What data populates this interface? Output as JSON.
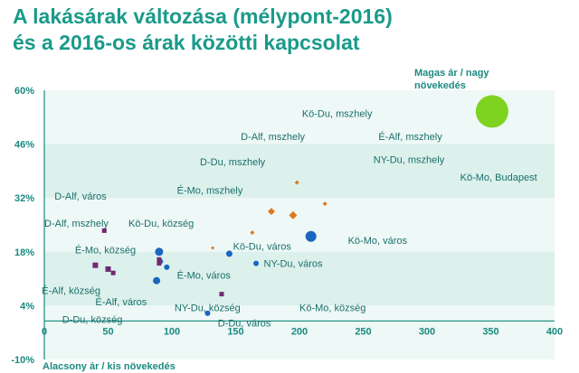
{
  "title_lines": [
    "A lakásárak változása (mélypont-2016)",
    "és a 2016-os árak közötti kapcsolat"
  ],
  "colors": {
    "title": "#1a9a8a",
    "band_light": "#eef8f6",
    "band_dark": "#dcf0ec",
    "axis": "#1a8a80",
    "blue": "#1a66c0",
    "orange": "#e07820",
    "purple": "#702a70",
    "green": "#7ed321"
  },
  "chart_data": {
    "type": "scatter",
    "title": "A lakásárak változása (mélypont-2016) és a 2016-os árak közötti kapcsolat",
    "xlabel": "",
    "ylabel": "",
    "xlim": [
      0,
      400
    ],
    "ylim": [
      -10,
      60
    ],
    "x_ticks": [
      {
        "value": 0,
        "label": "0"
      },
      {
        "value": 50,
        "label": "50"
      },
      {
        "value": 100,
        "label": "100"
      },
      {
        "value": 150,
        "label": "150"
      },
      {
        "value": 200,
        "label": "200"
      },
      {
        "value": 250,
        "label": "250"
      },
      {
        "value": 300,
        "label": "300"
      },
      {
        "value": 350,
        "label": "350"
      },
      {
        "value": 400,
        "label": "400"
      }
    ],
    "y_ticks": [
      {
        "value": 60,
        "label": "60%"
      },
      {
        "value": 46,
        "label": "46%"
      },
      {
        "value": 32,
        "label": "32%"
      },
      {
        "value": 18,
        "label": "18%"
      },
      {
        "value": 4,
        "label": "4%"
      },
      {
        "value": -10,
        "label": "-10%"
      }
    ],
    "corner_labels": {
      "top_right": [
        "Magas ár / nagy",
        "növekedés"
      ],
      "bottom_left": "Alacsony ár / kis növekedés"
    },
    "series": [
      {
        "marker": "circle",
        "color": "#1a66c0",
        "points": [
          {
            "x": 90,
            "y": 18,
            "r": 4.5
          },
          {
            "x": 91,
            "y": 15.5,
            "r": 3
          },
          {
            "x": 96,
            "y": 14,
            "r": 3
          },
          {
            "x": 88,
            "y": 10.5,
            "r": 4
          },
          {
            "x": 128,
            "y": 2,
            "r": 3
          },
          {
            "x": 145,
            "y": 17.5,
            "r": 3.5
          },
          {
            "x": 166,
            "y": 15,
            "r": 3
          },
          {
            "x": 209,
            "y": 22,
            "r": 6
          }
        ]
      },
      {
        "marker": "diamond",
        "color": "#e07820",
        "points": [
          {
            "x": 132,
            "y": 19,
            "r": 2
          },
          {
            "x": 163,
            "y": 23,
            "r": 2.5
          },
          {
            "x": 178,
            "y": 28.5,
            "r": 4
          },
          {
            "x": 195,
            "y": 27.5,
            "r": 4.5
          },
          {
            "x": 198,
            "y": 36,
            "r": 2.5
          },
          {
            "x": 220,
            "y": 30.5,
            "r": 2.5
          }
        ]
      },
      {
        "marker": "square",
        "color": "#702a70",
        "points": [
          {
            "x": 47,
            "y": 23.5,
            "r": 2.5
          },
          {
            "x": 40,
            "y": 14.5,
            "r": 3
          },
          {
            "x": 50,
            "y": 13.5,
            "r": 3
          },
          {
            "x": 54,
            "y": 12.5,
            "r": 2.5
          },
          {
            "x": 90,
            "y": 16,
            "r": 2.5
          },
          {
            "x": 90,
            "y": 15,
            "r": 2.5
          },
          {
            "x": 139,
            "y": 7,
            "r": 2.5
          }
        ]
      },
      {
        "marker": "circle",
        "color": "#7ed321",
        "points": [
          {
            "x": 351,
            "y": 54.5,
            "r": 18
          }
        ]
      }
    ],
    "point_labels": [
      {
        "text": "Kö-Du, mszhely",
        "x": 202,
        "y": 54
      },
      {
        "text": "D-Alf, mszhely",
        "x": 154,
        "y": 48
      },
      {
        "text": "É-Alf, mszhely",
        "x": 262,
        "y": 48
      },
      {
        "text": "D-Du, mszhely",
        "x": 122,
        "y": 41.5
      },
      {
        "text": "NY-Du, mszhely",
        "x": 258,
        "y": 42
      },
      {
        "text": "Kö-Mo, Budapest",
        "x": 326,
        "y": 37.5
      },
      {
        "text": "É-Mo, mszhely",
        "x": 104,
        "y": 34
      },
      {
        "text": "D-Alf, város",
        "x": 8,
        "y": 32.5
      },
      {
        "text": "D-Alf, mszhely",
        "x": 0,
        "y": 25.5
      },
      {
        "text": "Kö-Du, község",
        "x": 66,
        "y": 25.5
      },
      {
        "text": "Kö-Mo, város",
        "x": 238,
        "y": 21
      },
      {
        "text": "Kö-Du, város",
        "x": 148,
        "y": 19.5
      },
      {
        "text": "É-Mo, község",
        "x": 24,
        "y": 18.5
      },
      {
        "text": "NY-Du, város",
        "x": 172,
        "y": 15
      },
      {
        "text": "É-Mo, város",
        "x": 104,
        "y": 12
      },
      {
        "text": "É-Alf, község",
        "x": -2,
        "y": 8
      },
      {
        "text": "É-Alf, város",
        "x": 40,
        "y": 5
      },
      {
        "text": "NY-Du, község",
        "x": 102,
        "y": 3.5
      },
      {
        "text": "Kö-Mo, község",
        "x": 200,
        "y": 3.5
      },
      {
        "text": "D-Du, község",
        "x": 14,
        "y": 0.5
      },
      {
        "text": "D-Du, város",
        "x": 136,
        "y": -0.5
      }
    ]
  }
}
